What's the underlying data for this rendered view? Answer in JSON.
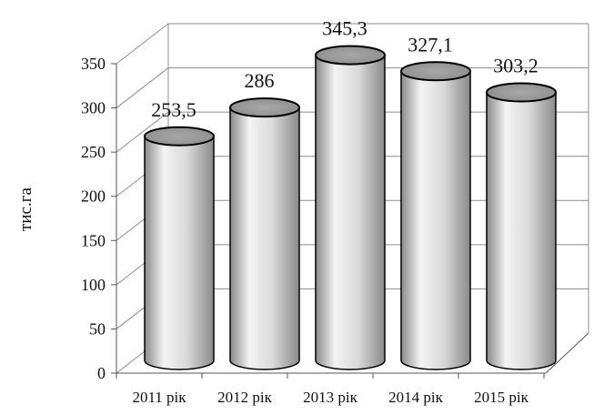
{
  "chart_data": {
    "type": "bar",
    "style": "3d-cylinder",
    "categories": [
      "2011 рік",
      "2012 рік",
      "2013 рік",
      "2014 рік",
      "2015 рік"
    ],
    "values": [
      253.5,
      286,
      345.3,
      327.1,
      303.2
    ],
    "data_labels": [
      "253,5",
      "286",
      "345,3",
      "327,1",
      "303,2"
    ],
    "title": "",
    "xlabel": "",
    "ylabel": "тис.га",
    "ylim": [
      0,
      350
    ],
    "yticks": [
      0,
      50,
      100,
      150,
      200,
      250,
      300,
      350
    ],
    "yticks_labels": [
      "0",
      "50",
      "100",
      "150",
      "200",
      "250",
      "300",
      "350"
    ],
    "grid": true,
    "legend": "none",
    "colors": {
      "bar_light": "#f4f4f4",
      "bar_dark": "#8a8a8a",
      "bar_top": "#8c8c8c",
      "outline": "#000000",
      "gridline": "#8c8c8c"
    }
  }
}
